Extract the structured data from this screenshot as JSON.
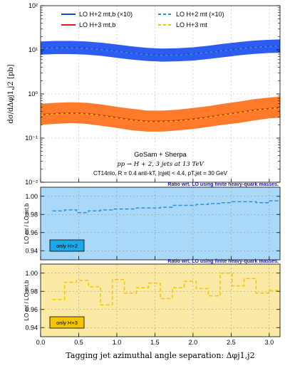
{
  "chart_data": [
    {
      "type": "line",
      "panel": "main",
      "ylabel": "dσ/dΔφj1,j2 [pb]",
      "yscale": "log",
      "ylim": [
        0.01,
        100
      ],
      "xlim": [
        0,
        3.1416
      ],
      "yticks": [
        "10⁻²",
        "10⁻¹",
        "10⁰",
        "10¹",
        "10²"
      ],
      "legend_position": "top",
      "legend": [
        {
          "label": "LO H+2 mt,b (×10)",
          "color": "#1f3fdc",
          "style": "solid"
        },
        {
          "label": "LO H+2 mt (×10)",
          "color": "#2e8fe0",
          "style": "dashed"
        },
        {
          "label": "LO H+3 mt,b",
          "color": "#dd1a1a",
          "style": "solid"
        },
        {
          "label": "LO H+3 mt",
          "color": "#f5c400",
          "style": "dashed"
        }
      ],
      "annotations": [
        "GoSam + Sherpa",
        "pp → H + 2, 3 jets at 13 TeV",
        "CT14nlo, R = 0.4 anti-kT, |ηjet| < 4.4, pT,jet = 30 GeV"
      ],
      "series": [
        {
          "name": "LO H+2 mt,b (×10)",
          "color": "#1f3fdc",
          "band_color": "#2f5cf0",
          "x": [
            0.0,
            0.2,
            0.4,
            0.6,
            0.8,
            1.0,
            1.2,
            1.4,
            1.6,
            1.8,
            2.0,
            2.2,
            2.4,
            2.6,
            2.8,
            3.0,
            3.1416
          ],
          "central": [
            11.0,
            11.3,
            11.3,
            11.0,
            10.3,
            9.4,
            8.5,
            7.9,
            7.6,
            7.7,
            8.1,
            8.8,
            9.7,
            10.6,
            11.5,
            12.0,
            12.2
          ],
          "lower": [
            7.8,
            8.0,
            8.0,
            7.8,
            7.3,
            6.6,
            6.0,
            5.6,
            5.4,
            5.5,
            5.7,
            6.2,
            6.8,
            7.5,
            8.1,
            8.5,
            8.6
          ],
          "upper": [
            15.5,
            15.9,
            15.9,
            15.5,
            14.5,
            13.2,
            12.0,
            11.1,
            10.7,
            10.9,
            11.4,
            12.4,
            13.7,
            15.0,
            16.2,
            16.9,
            17.2
          ]
        },
        {
          "name": "LO H+2 mt (×10)",
          "color": "#2e8fe0",
          "x": [
            0.0,
            0.2,
            0.4,
            0.6,
            0.8,
            1.0,
            1.2,
            1.4,
            1.6,
            1.8,
            2.0,
            2.2,
            2.4,
            2.6,
            2.8,
            3.0,
            3.1416
          ],
          "central": [
            10.85,
            11.1,
            11.1,
            10.85,
            10.15,
            9.25,
            8.4,
            7.8,
            7.5,
            7.6,
            8.0,
            8.7,
            9.6,
            10.5,
            11.4,
            11.9,
            12.1
          ]
        },
        {
          "name": "LO H+3 mt,b",
          "color": "#dd1a1a",
          "band_color": "#ff7a2a",
          "x": [
            0.0,
            0.2,
            0.4,
            0.6,
            0.8,
            1.0,
            1.2,
            1.4,
            1.6,
            1.8,
            2.0,
            2.2,
            2.4,
            2.6,
            2.8,
            3.0,
            3.1416
          ],
          "central": [
            0.34,
            0.36,
            0.37,
            0.36,
            0.33,
            0.29,
            0.26,
            0.24,
            0.24,
            0.25,
            0.27,
            0.3,
            0.34,
            0.38,
            0.43,
            0.47,
            0.49
          ],
          "lower": [
            0.2,
            0.21,
            0.22,
            0.21,
            0.19,
            0.17,
            0.15,
            0.14,
            0.14,
            0.15,
            0.16,
            0.18,
            0.2,
            0.22,
            0.25,
            0.28,
            0.29
          ],
          "upper": [
            0.6,
            0.63,
            0.65,
            0.63,
            0.58,
            0.51,
            0.46,
            0.42,
            0.42,
            0.44,
            0.48,
            0.53,
            0.6,
            0.67,
            0.76,
            0.83,
            0.87
          ]
        },
        {
          "name": "LO H+3 mt",
          "color": "#f5c400",
          "x": [
            0.0,
            0.2,
            0.4,
            0.6,
            0.8,
            1.0,
            1.2,
            1.4,
            1.6,
            1.8,
            2.0,
            2.2,
            2.4,
            2.6,
            2.8,
            3.0,
            3.1416
          ],
          "central": [
            0.335,
            0.355,
            0.365,
            0.355,
            0.325,
            0.285,
            0.255,
            0.235,
            0.235,
            0.245,
            0.265,
            0.295,
            0.335,
            0.375,
            0.425,
            0.465,
            0.485
          ]
        }
      ]
    },
    {
      "type": "line",
      "panel": "ratio-h2",
      "title": "Ratio wrt. LO using finite heavy-quark masses.",
      "ylabel": "LO mt / LO mt,b",
      "ylim": [
        0.93,
        1.01
      ],
      "yticks": [
        "0.94",
        "0.96",
        "0.98",
        "1.00"
      ],
      "label": "only H+2",
      "background": "#a9d8f8",
      "label_color": "#1aa8e8",
      "series": [
        {
          "name": "LO H+2 mt / LO H+2 mt,b",
          "color": "#2e8fe0",
          "edges": [
            0.157,
            0.314,
            0.471,
            0.628,
            0.785,
            0.942,
            1.1,
            1.257,
            1.414,
            1.571,
            1.728,
            1.885,
            2.042,
            2.199,
            2.356,
            2.513,
            2.67,
            2.827,
            2.985,
            3.142
          ],
          "values": [
            0.984,
            0.985,
            0.982,
            0.984,
            0.985,
            0.986,
            0.986,
            0.987,
            0.987,
            0.988,
            0.99,
            0.99,
            0.991,
            0.992,
            0.993,
            0.994,
            0.994,
            0.993,
            0.995
          ]
        }
      ]
    },
    {
      "type": "line",
      "panel": "ratio-h3",
      "title": "Ratio wrt. LO using finite heavy-quark masses.",
      "ylabel": "LO mt / LO mt,b",
      "ylim": [
        0.93,
        1.01
      ],
      "yticks": [
        "0.94",
        "0.96",
        "0.98",
        "1.00"
      ],
      "xlabel": "Tagging jet azimuthal angle separation: Δφj1,j2",
      "xticks": [
        "0.0",
        "0.5",
        "1.0",
        "1.5",
        "2.0",
        "2.5",
        "3.0"
      ],
      "label": "only H+3",
      "background": "#fbeaa6",
      "label_color": "#f5c400",
      "series": [
        {
          "name": "LO H+3 mt / LO H+3 mt,b",
          "color": "#f5c400",
          "edges": [
            0.157,
            0.314,
            0.471,
            0.628,
            0.785,
            0.942,
            1.1,
            1.257,
            1.414,
            1.571,
            1.728,
            1.885,
            2.042,
            2.199,
            2.356,
            2.513,
            2.67,
            2.827,
            2.985,
            3.142
          ],
          "values": [
            0.971,
            0.99,
            0.992,
            0.985,
            0.965,
            0.993,
            0.978,
            0.984,
            0.989,
            0.972,
            0.984,
            0.991,
            0.983,
            0.975,
            1.0,
            0.986,
            0.994,
            0.978,
            0.981
          ]
        }
      ]
    }
  ]
}
